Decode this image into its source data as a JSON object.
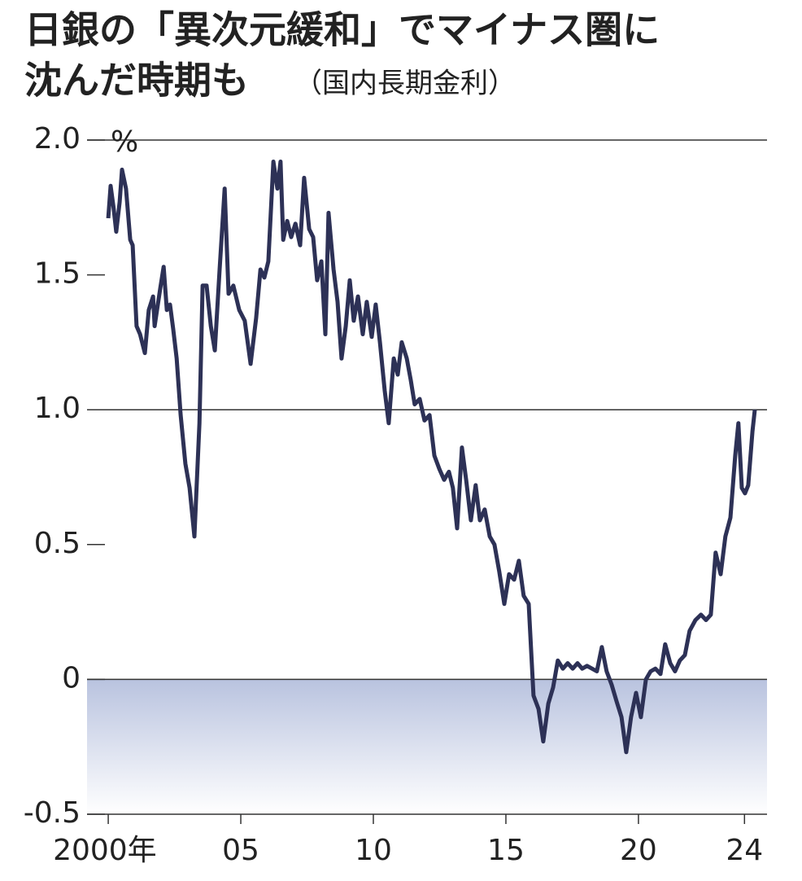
{
  "chart_data": {
    "type": "line",
    "title": [
      "日銀の「異次元緩和」でマイナス圏に",
      "沈んだ時期も"
    ],
    "subtitle": "（国内長期金利）",
    "y_unit": "%",
    "xlim": [
      1999.2,
      2024.85
    ],
    "xticks": [
      {
        "value": 2000,
        "label": "2000年"
      },
      {
        "value": 2005,
        "label": "05"
      },
      {
        "value": 2010,
        "label": "10"
      },
      {
        "value": 2015,
        "label": "15"
      },
      {
        "value": 2020,
        "label": "20"
      },
      {
        "value": 2024,
        "label": "24"
      }
    ],
    "ylim": [
      -0.5,
      2.0
    ],
    "yticks": [
      -0.5,
      0,
      0.5,
      {
        "value": 1,
        "label": "1.0"
      },
      1.5,
      {
        "value": 2,
        "label": "2.0"
      }
    ],
    "x": [
      2000.0,
      2000.09,
      2000.2,
      2000.3,
      2000.43,
      2000.52,
      2000.67,
      2000.83,
      2000.92,
      2001.07,
      2001.2,
      2001.38,
      2001.53,
      2001.69,
      2001.75,
      2001.96,
      2002.09,
      2002.21,
      2002.33,
      2002.45,
      2002.58,
      2002.73,
      2002.91,
      2003.07,
      2003.25,
      2003.44,
      2003.56,
      2003.71,
      2003.87,
      2004.02,
      2004.2,
      2004.39,
      2004.54,
      2004.72,
      2004.94,
      2005.15,
      2005.37,
      2005.58,
      2005.74,
      2005.89,
      2006.04,
      2006.23,
      2006.38,
      2006.5,
      2006.6,
      2006.75,
      2006.9,
      2007.06,
      2007.24,
      2007.39,
      2007.58,
      2007.73,
      2007.88,
      2008.04,
      2008.19,
      2008.31,
      2008.5,
      2008.65,
      2008.8,
      2008.96,
      2009.11,
      2009.26,
      2009.42,
      2009.6,
      2009.75,
      2009.94,
      2010.09,
      2010.25,
      2010.43,
      2010.58,
      2010.77,
      2010.92,
      2011.07,
      2011.26,
      2011.41,
      2011.56,
      2011.75,
      2011.93,
      2012.12,
      2012.3,
      2012.49,
      2012.67,
      2012.85,
      2013.0,
      2013.16,
      2013.34,
      2013.5,
      2013.68,
      2013.86,
      2014.02,
      2014.2,
      2014.39,
      2014.57,
      2014.75,
      2014.94,
      2015.12,
      2015.31,
      2015.49,
      2015.67,
      2015.86,
      2016.04,
      2016.23,
      2016.41,
      2016.6,
      2016.78,
      2016.96,
      2017.15,
      2017.33,
      2017.52,
      2017.7,
      2017.88,
      2018.06,
      2018.25,
      2018.43,
      2018.62,
      2018.8,
      2018.99,
      2019.17,
      2019.36,
      2019.54,
      2019.72,
      2019.91,
      2020.09,
      2020.28,
      2020.46,
      2020.64,
      2020.83,
      2021.01,
      2021.2,
      2021.38,
      2021.56,
      2021.75,
      2021.93,
      2022.15,
      2022.36,
      2022.55,
      2022.73,
      2022.91,
      2023.1,
      2023.28,
      2023.47,
      2023.65,
      2023.77,
      2023.9,
      2024.02,
      2024.14,
      2024.3,
      2024.39
    ],
    "series": [
      {
        "color": "#2d3156",
        "values": [
          1.71,
          1.83,
          1.75,
          1.66,
          1.77,
          1.89,
          1.82,
          1.63,
          1.61,
          1.31,
          1.28,
          1.21,
          1.37,
          1.42,
          1.31,
          1.45,
          1.53,
          1.37,
          1.39,
          1.3,
          1.19,
          0.98,
          0.8,
          0.71,
          0.53,
          0.95,
          1.46,
          1.46,
          1.31,
          1.22,
          1.52,
          1.82,
          1.43,
          1.46,
          1.37,
          1.33,
          1.17,
          1.34,
          1.52,
          1.49,
          1.55,
          1.92,
          1.82,
          1.92,
          1.63,
          1.7,
          1.64,
          1.69,
          1.61,
          1.86,
          1.67,
          1.64,
          1.48,
          1.55,
          1.28,
          1.73,
          1.52,
          1.4,
          1.19,
          1.31,
          1.48,
          1.33,
          1.42,
          1.28,
          1.4,
          1.27,
          1.39,
          1.25,
          1.07,
          0.95,
          1.19,
          1.13,
          1.25,
          1.19,
          1.11,
          1.02,
          1.04,
          0.96,
          0.98,
          0.83,
          0.78,
          0.74,
          0.77,
          0.71,
          0.56,
          0.86,
          0.74,
          0.59,
          0.72,
          0.59,
          0.63,
          0.53,
          0.5,
          0.4,
          0.28,
          0.39,
          0.37,
          0.44,
          0.31,
          0.28,
          -0.06,
          -0.11,
          -0.23,
          -0.09,
          -0.03,
          0.07,
          0.04,
          0.06,
          0.04,
          0.06,
          0.04,
          0.05,
          0.04,
          0.03,
          0.12,
          0.03,
          -0.02,
          -0.08,
          -0.14,
          -0.27,
          -0.14,
          -0.05,
          -0.14,
          0.0,
          0.03,
          0.04,
          0.02,
          0.13,
          0.06,
          0.03,
          0.07,
          0.09,
          0.18,
          0.22,
          0.24,
          0.22,
          0.24,
          0.47,
          0.39,
          0.53,
          0.6,
          0.83,
          0.95,
          0.71,
          0.69,
          0.72,
          0.92,
          1.0
        ]
      }
    ]
  }
}
